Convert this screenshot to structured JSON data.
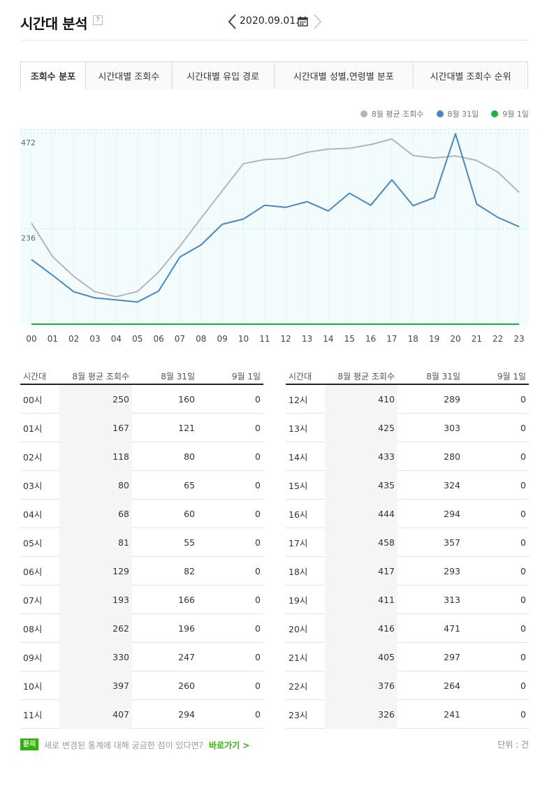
{
  "header": {
    "title": "시간대 분석",
    "help": "?",
    "date": "2020.09.01."
  },
  "tabs": [
    {
      "label": "조회수 분포",
      "active": true
    },
    {
      "label": "시간대별 조회수",
      "active": false
    },
    {
      "label": "시간대별 유입 경로",
      "active": false
    },
    {
      "label": "시간대별 성별,연령별 분포",
      "active": false
    },
    {
      "label": "시간대별 조회수 순위",
      "active": false
    }
  ],
  "legend": [
    {
      "label": "8월 평균 조회수",
      "color": "#b5b5b5"
    },
    {
      "label": "8월 31일",
      "color": "#4a86c8"
    },
    {
      "label": "9월 1일",
      "color": "#1ab33c"
    }
  ],
  "chart_data": {
    "type": "line",
    "categories": [
      "00",
      "01",
      "02",
      "03",
      "04",
      "05",
      "06",
      "07",
      "08",
      "09",
      "10",
      "11",
      "12",
      "13",
      "14",
      "15",
      "16",
      "17",
      "18",
      "19",
      "20",
      "21",
      "22",
      "23"
    ],
    "series": [
      {
        "name": "8월 평균 조회수",
        "color": "#b5b5b5",
        "values": [
          250,
          167,
          118,
          80,
          68,
          81,
          129,
          193,
          262,
          330,
          397,
          407,
          410,
          425,
          433,
          435,
          444,
          458,
          417,
          411,
          416,
          405,
          376,
          326
        ]
      },
      {
        "name": "8월 31일",
        "color": "#4a86c8",
        "values": [
          160,
          121,
          80,
          65,
          60,
          55,
          82,
          166,
          196,
          247,
          260,
          294,
          289,
          303,
          280,
          324,
          294,
          357,
          293,
          313,
          471,
          297,
          264,
          241
        ]
      },
      {
        "name": "9월 1일",
        "color": "#1ab33c",
        "values": [
          0,
          0,
          0,
          0,
          0,
          0,
          0,
          0,
          0,
          0,
          0,
          0,
          0,
          0,
          0,
          0,
          0,
          0,
          0,
          0,
          0,
          0,
          0,
          0
        ]
      }
    ],
    "y_ticks": [
      "472",
      "236"
    ],
    "ylim": [
      0,
      472
    ],
    "grid": true
  },
  "table": {
    "headers": [
      "시간대",
      "8월 평균 조회수",
      "8월 31일",
      "9월 1일"
    ],
    "left_rows": [
      [
        "00시",
        "250",
        "160",
        "0"
      ],
      [
        "01시",
        "167",
        "121",
        "0"
      ],
      [
        "02시",
        "118",
        "80",
        "0"
      ],
      [
        "03시",
        "80",
        "65",
        "0"
      ],
      [
        "04시",
        "68",
        "60",
        "0"
      ],
      [
        "05시",
        "81",
        "55",
        "0"
      ],
      [
        "06시",
        "129",
        "82",
        "0"
      ],
      [
        "07시",
        "193",
        "166",
        "0"
      ],
      [
        "08시",
        "262",
        "196",
        "0"
      ],
      [
        "09시",
        "330",
        "247",
        "0"
      ],
      [
        "10시",
        "397",
        "260",
        "0"
      ],
      [
        "11시",
        "407",
        "294",
        "0"
      ]
    ],
    "right_rows": [
      [
        "12시",
        "410",
        "289",
        "0"
      ],
      [
        "13시",
        "425",
        "303",
        "0"
      ],
      [
        "14시",
        "433",
        "280",
        "0"
      ],
      [
        "15시",
        "435",
        "324",
        "0"
      ],
      [
        "16시",
        "444",
        "294",
        "0"
      ],
      [
        "17시",
        "458",
        "357",
        "0"
      ],
      [
        "18시",
        "417",
        "293",
        "0"
      ],
      [
        "19시",
        "411",
        "313",
        "0"
      ],
      [
        "20시",
        "416",
        "471",
        "0"
      ],
      [
        "21시",
        "405",
        "297",
        "0"
      ],
      [
        "22시",
        "376",
        "264",
        "0"
      ],
      [
        "23시",
        "326",
        "241",
        "0"
      ]
    ]
  },
  "footer": {
    "badge": "문의",
    "text": "새로 변경된 통계에 대해 궁금한 점이 있다면?",
    "link": "바로가기 >",
    "unit": "단위 : 건"
  }
}
